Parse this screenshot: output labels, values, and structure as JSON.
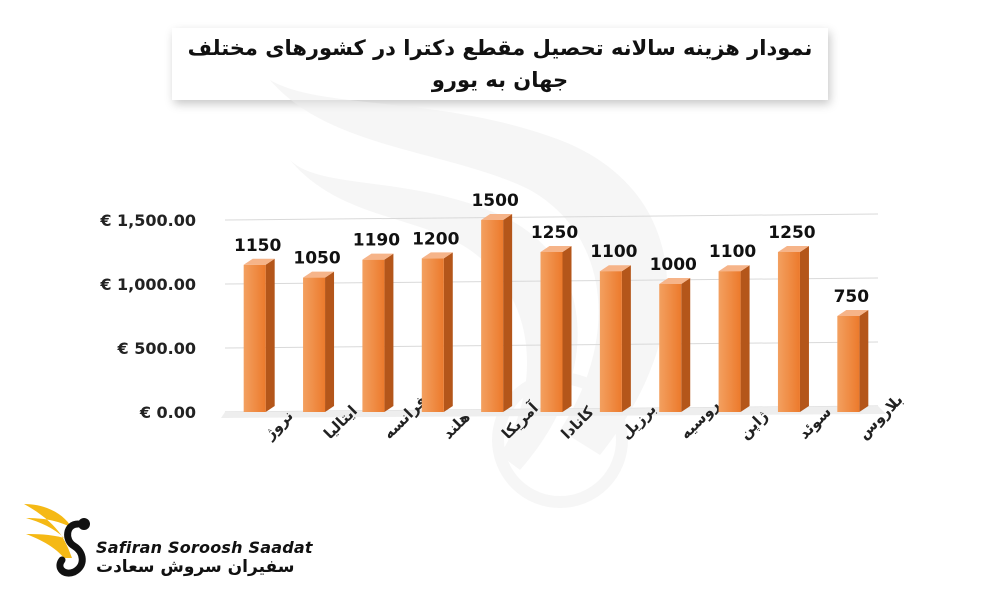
{
  "header": {
    "title": "نمودار هزینه سالانه تحصیل مقطع دکترا در کشورهای مختلف جهان به یورو"
  },
  "brand": {
    "name_en": "Safiran Soroosh Saadat",
    "name_fa": "سفیران سروش سعادت",
    "accent_color": "#f5b915"
  },
  "chart_data": {
    "type": "bar",
    "title": "نمودار هزینه سالانه تحصیل مقطع دکترا در کشورهای مختلف جهان به یورو",
    "xlabel": "",
    "ylabel": "",
    "categories": [
      "نروژ",
      "ایتالیا",
      "فرانسه",
      "هلند",
      "آمریکا",
      "کانادا",
      "برزیل",
      "روسیه",
      "ژاپن",
      "سوئد",
      "بلاروس"
    ],
    "values": [
      1150,
      1050,
      1190,
      1200,
      1500,
      1250,
      1100,
      1000,
      1100,
      1250,
      750
    ],
    "data_labels": [
      "1150",
      "1050",
      "1190",
      "1200",
      "1500",
      "1250",
      "1100",
      "1000",
      "1100",
      "1250",
      "750"
    ],
    "y_ticks": [
      0,
      500,
      1000,
      1500
    ],
    "y_tick_labels": [
      "€ 0.00",
      "€ 500.00",
      "€ 1,000.00",
      "€ 1,500.00"
    ],
    "ylim": [
      0,
      1500
    ],
    "grid": true,
    "bar_color": "#ed7d31",
    "bar_style": "3d",
    "legend": "none"
  }
}
